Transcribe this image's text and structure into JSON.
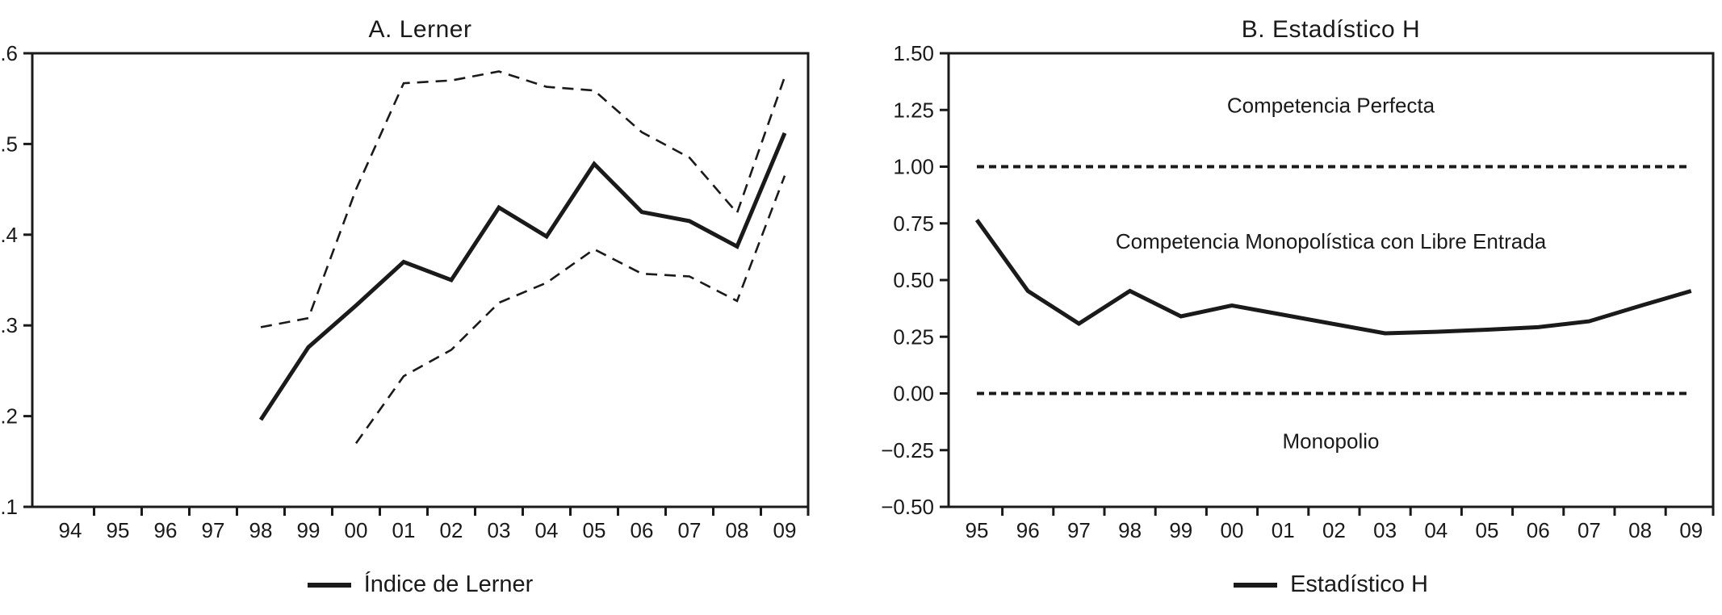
{
  "style": {
    "line_color": "#1a1a1a",
    "background": "#ffffff"
  },
  "chart_data": [
    {
      "id": "panel-a",
      "type": "line",
      "title": "A. Lerner",
      "legend_label": "Índice de Lerner",
      "legend_position": "bottom-center",
      "x_tick_labels": [
        "94",
        "95",
        "96",
        "97",
        "98",
        "99",
        "00",
        "01",
        "02",
        "03",
        "04",
        "05",
        "06",
        "07",
        "08",
        "09"
      ],
      "y_tick_labels": [
        ".6",
        ".5",
        ".4",
        ".3",
        ".2",
        ".1"
      ],
      "y_tick_values": [
        0.6,
        0.5,
        0.4,
        0.3,
        0.2,
        0.1
      ],
      "ylim": [
        0.1,
        0.6
      ],
      "grid": false,
      "series": [
        {
          "name": "Índice de Lerner",
          "style": "solid",
          "values": [
            null,
            null,
            null,
            null,
            0.196,
            0.276,
            0.322,
            0.37,
            0.35,
            0.43,
            0.398,
            0.478,
            0.425,
            0.415,
            0.387,
            0.512
          ]
        },
        {
          "name": "Banda superior",
          "style": "dashed",
          "values": [
            null,
            null,
            null,
            null,
            0.298,
            0.308,
            0.45,
            0.567,
            0.57,
            0.58,
            0.563,
            0.559,
            0.513,
            0.485,
            0.424,
            0.574
          ]
        },
        {
          "name": "Banda inferior",
          "style": "dashed",
          "values": [
            null,
            null,
            null,
            null,
            null,
            null,
            0.17,
            0.244,
            0.273,
            0.325,
            0.347,
            0.384,
            0.357,
            0.354,
            0.327,
            0.465
          ]
        }
      ],
      "thresholds": [],
      "annotations": []
    },
    {
      "id": "panel-b",
      "type": "line",
      "title": "B. Estadístico H",
      "legend_label": "Estadístico H",
      "legend_position": "bottom-center",
      "x_tick_labels": [
        "95",
        "96",
        "97",
        "98",
        "99",
        "00",
        "01",
        "02",
        "03",
        "04",
        "05",
        "06",
        "07",
        "08",
        "09"
      ],
      "y_tick_labels": [
        "1.50",
        "1.25",
        "1.00",
        "0.75",
        "0.50",
        "0.25",
        "0.00",
        "−0.25",
        "−0.50"
      ],
      "y_tick_values": [
        1.5,
        1.25,
        1.0,
        0.75,
        0.5,
        0.25,
        0.0,
        -0.25,
        -0.5
      ],
      "ylim": [
        -0.5,
        1.5
      ],
      "grid": false,
      "series": [
        {
          "name": "Estadístico H",
          "style": "solid",
          "values": [
            0.765,
            0.452,
            0.308,
            0.452,
            0.34,
            0.388,
            0.347,
            0.306,
            0.265,
            0.272,
            0.281,
            0.292,
            0.318,
            0.386,
            0.452
          ]
        }
      ],
      "thresholds": [
        1.0,
        0.0
      ],
      "annotations": [
        {
          "text": "Competencia Perfecta",
          "value": 1.27
        },
        {
          "text": "Competencia Monopolística con Libre Entrada",
          "value": 0.67
        },
        {
          "text": "Monopolio",
          "value": -0.21
        }
      ]
    }
  ]
}
